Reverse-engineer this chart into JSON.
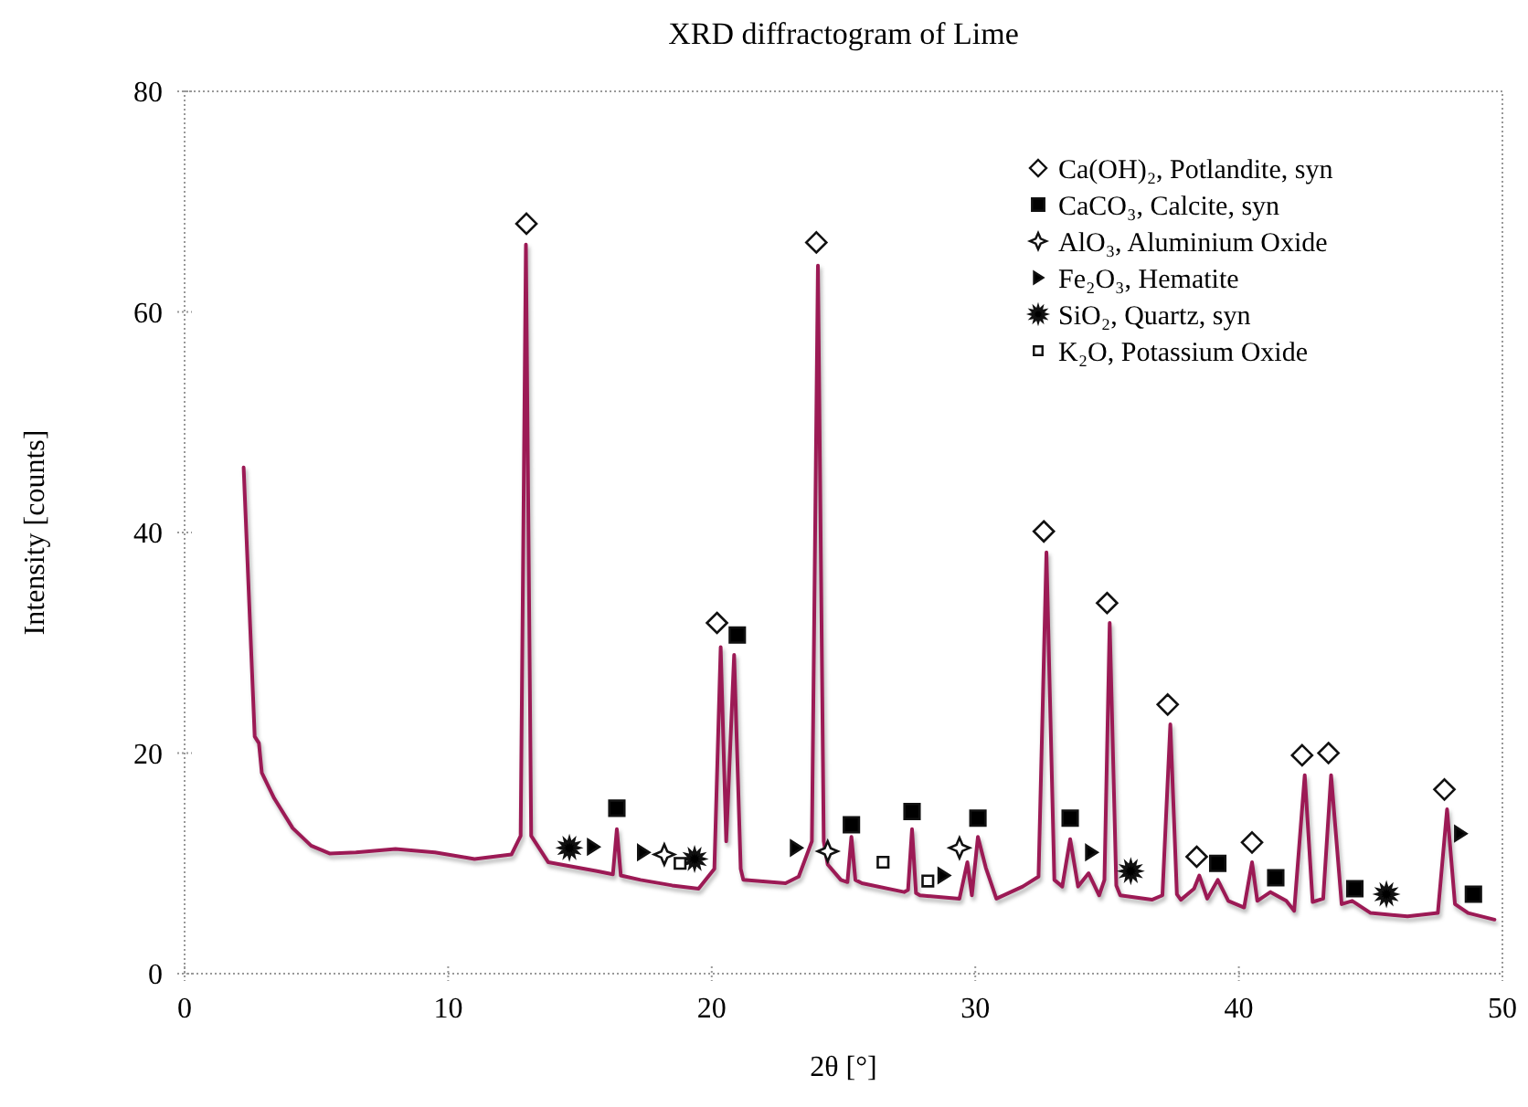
{
  "chart_data": {
    "type": "line",
    "title": "XRD diffractogram of Lime",
    "xlabel": "2θ [°]",
    "ylabel": "Intensity [counts]",
    "xlim": [
      0,
      50
    ],
    "xticks": [
      0,
      10,
      20,
      30,
      40,
      50
    ],
    "ylim": [
      0,
      80
    ],
    "yticks": [
      0,
      20,
      40,
      60,
      80
    ],
    "grid": false,
    "legend": "top right",
    "series": [
      {
        "color": "#9c1a55",
        "marker": "none",
        "x": [
          2.24,
          2.66,
          2.82,
          2.93,
          3.4,
          4.1,
          4.8,
          5.5,
          6.5,
          8.0,
          9.5,
          11.0,
          12.4,
          12.75,
          12.95,
          13.15,
          13.8,
          15.65,
          16.25,
          16.4,
          16.55,
          17.3,
          18.5,
          19.5,
          20.1,
          20.34,
          20.55,
          20.85,
          21.1,
          21.2,
          22.8,
          23.3,
          23.8,
          24.03,
          24.25,
          24.4,
          24.9,
          25.15,
          25.3,
          25.45,
          25.7,
          27.3,
          27.45,
          27.6,
          27.75,
          27.9,
          29.4,
          29.7,
          29.87,
          30.1,
          30.4,
          30.8,
          31.8,
          32.4,
          32.7,
          33.0,
          33.3,
          33.6,
          33.9,
          34.3,
          34.7,
          34.9,
          35.1,
          35.35,
          35.5,
          36.7,
          37.1,
          37.4,
          37.65,
          37.8,
          38.3,
          38.5,
          38.8,
          39.2,
          39.6,
          40.2,
          40.5,
          40.7,
          41.2,
          41.8,
          42.1,
          42.5,
          42.8,
          43.2,
          43.5,
          43.9,
          44.3,
          45.0,
          46.4,
          47.55,
          47.9,
          48.2,
          48.7,
          49.7
        ],
        "values": [
          45.9,
          21.5,
          20.9,
          18.2,
          15.9,
          13.2,
          11.6,
          10.9,
          11.0,
          11.3,
          11.0,
          10.4,
          10.8,
          12.5,
          66.1,
          12.5,
          10.1,
          9.3,
          9.0,
          13.1,
          8.9,
          8.5,
          8.0,
          7.7,
          9.5,
          29.6,
          12,
          28.9,
          9.5,
          8.5,
          8.2,
          8.8,
          12,
          64.2,
          12,
          9.9,
          8.5,
          8.3,
          12.4,
          8.5,
          8.2,
          7.4,
          7.6,
          13.1,
          7.3,
          7.1,
          6.8,
          10.1,
          7.1,
          12.4,
          9.6,
          6.8,
          7.9,
          8.8,
          38.2,
          8.5,
          7.9,
          12.2,
          7.9,
          9.1,
          7.1,
          8.5,
          31.8,
          8,
          7.1,
          6.7,
          7.1,
          22.6,
          7.2,
          6.7,
          7.7,
          8.9,
          6.8,
          8.5,
          6.6,
          6.0,
          10.1,
          6.6,
          7.4,
          6.6,
          5.7,
          18.0,
          6.5,
          6.8,
          18.0,
          6.3,
          6.6,
          5.5,
          5.2,
          5.5,
          14.9,
          6.3,
          5.5,
          4.9
        ]
      },
      {
        "type": "scatter",
        "name": "Ca(OH)₂, Potlandite, syn",
        "color": "#ffffff",
        "marker": "diamond",
        "x": [
          12.97,
          20.2,
          23.97,
          32.6,
          35.0,
          37.3,
          38.4,
          40.5,
          42.4,
          43.4,
          47.8
        ],
        "values": [
          68.0,
          31.8,
          66.3,
          40.1,
          33.6,
          24.4,
          10.6,
          11.9,
          19.8,
          20.0,
          16.7
        ]
      },
      {
        "type": "scatter",
        "name": "CaCO₃, Calcite, syn",
        "color": "#000000",
        "marker": "square",
        "x": [
          16.4,
          20.97,
          25.3,
          27.6,
          30.1,
          33.6,
          39.2,
          41.4,
          44.4,
          48.9
        ],
        "values": [
          15.0,
          30.7,
          13.5,
          14.7,
          14.1,
          14.1,
          10.0,
          8.7,
          7.7,
          7.2
        ]
      },
      {
        "type": "scatter",
        "name": "AlO₃, Aluminium Oxide",
        "color": "#ffffff",
        "marker": "cross",
        "x": [
          18.2,
          24.4,
          29.4
        ],
        "values": [
          10.8,
          11.1,
          11.4
        ]
      },
      {
        "type": "scatter",
        "name": "Fe₂O₃, Hematite",
        "color": "#000000",
        "marker": "triangle",
        "x": [
          15.5,
          17.4,
          23.2,
          28.8,
          34.4,
          48.4
        ],
        "values": [
          11.5,
          11.0,
          11.4,
          8.9,
          11.0,
          12.7
        ]
      },
      {
        "type": "scatter",
        "name": "SiO₂, Quartz, syn",
        "color": "#000000",
        "marker": "star",
        "x": [
          14.6,
          19.35,
          35.9,
          45.6
        ],
        "values": [
          11.4,
          10.4,
          9.3,
          7.2
        ]
      },
      {
        "type": "scatter",
        "name": "K₂O, Potassium Oxide",
        "color": "#ffffff",
        "marker": "square",
        "x": [
          18.8,
          26.5,
          28.2
        ],
        "values": [
          10.0,
          10.1,
          8.4
        ]
      }
    ]
  }
}
